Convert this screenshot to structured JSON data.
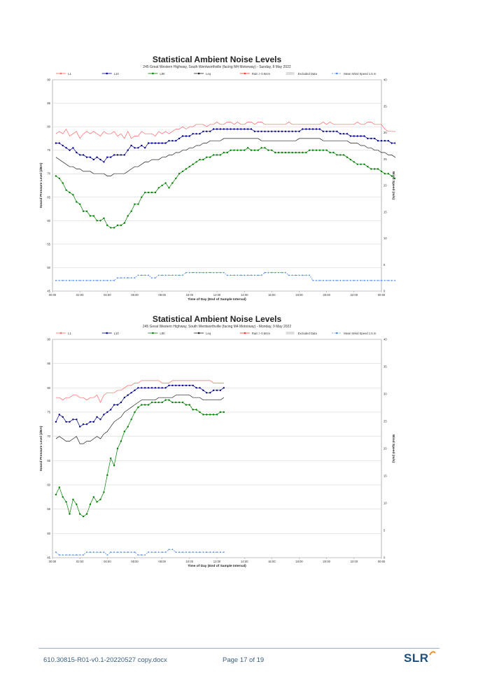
{
  "chart_data": [
    {
      "type": "line",
      "title": "Statistical Ambient Noise Levels",
      "subtitle": "245 Great Western Highway, South Wentworthville (facing M4 Motorway) - Sunday, 8 May 2022",
      "xlabel": "Time of Day (End of Sample Interval)",
      "ylabel": "Sound Pressure Level (dBA)",
      "y2label": "Wind Speed (m/s)",
      "xlim": [
        0,
        24
      ],
      "ylim": [
        45,
        90
      ],
      "y2lim": [
        0,
        40
      ],
      "x_ticks": [
        "00:00",
        "02:00",
        "04:00",
        "06:00",
        "08:00",
        "10:00",
        "12:00",
        "14:00",
        "16:00",
        "18:00",
        "20:00",
        "22:00",
        "00:00"
      ],
      "y_ticks": [
        45,
        50,
        55,
        60,
        65,
        70,
        75,
        80,
        85,
        90
      ],
      "y2_ticks": [
        0,
        5,
        10,
        15,
        20,
        25,
        30,
        35,
        40
      ],
      "grid": true,
      "legend_position": "top",
      "legend": [
        "L1",
        "L10",
        "L90",
        "Leq",
        "Rain > 0.5mm",
        "Excluded Data",
        "Mean Wind Speed 1.5 m"
      ],
      "interval_hours": 0.25,
      "series": [
        {
          "name": "L1",
          "axis": "left",
          "color": "#ff6666",
          "style": "line",
          "values": [
            78.5,
            79,
            78.5,
            79.5,
            78,
            78.5,
            79,
            77.5,
            78.5,
            79,
            78.5,
            79,
            78.5,
            78,
            79,
            78.5,
            78.5,
            79,
            78,
            78.5,
            77.5,
            79,
            77.5,
            78,
            78,
            79,
            78.5,
            78.5,
            78.5,
            78,
            79,
            78.5,
            79,
            78.5,
            79,
            79.5,
            79.5,
            80,
            79.5,
            80,
            80,
            80.5,
            80.5,
            80.5,
            80,
            80.5,
            80.5,
            81,
            80.5,
            80.5,
            81,
            81,
            80.5,
            81,
            80.5,
            80.5,
            81,
            81,
            80.5,
            81,
            81,
            80.5,
            80.5,
            80.5,
            80.5,
            80.5,
            80.5,
            80.5,
            81,
            80.5,
            80.5,
            80.5,
            80.5,
            80.5,
            80.5,
            80.5,
            80.5,
            80.5,
            81,
            80.5,
            81,
            80.5,
            80.5,
            80.5,
            80.5,
            80.5,
            80.5,
            80.5,
            81,
            80.5,
            80.5,
            81,
            81,
            80.5,
            80.5,
            80.5,
            79.5,
            79,
            79,
            79,
            78.5,
            78.5,
            79,
            79,
            78.5,
            78,
            78
          ]
        },
        {
          "name": "L10",
          "axis": "left",
          "color": "#00008b",
          "style": "marker",
          "values": [
            76.5,
            76.5,
            76,
            75.5,
            75,
            75.5,
            74.5,
            74,
            74,
            73.5,
            73.5,
            73,
            73.5,
            73,
            72.5,
            73.5,
            73.5,
            74,
            74,
            74,
            74,
            75,
            76,
            75.5,
            75.5,
            76,
            75.5,
            76.5,
            76.5,
            76.5,
            76.5,
            76.5,
            76.5,
            77,
            77,
            77,
            77.5,
            78,
            78,
            78,
            78.5,
            78.5,
            78.5,
            79,
            79,
            79,
            79.5,
            79.5,
            79.5,
            79.5,
            79.5,
            79.5,
            79.5,
            79.5,
            79.5,
            79.5,
            79.5,
            79.5,
            79,
            79,
            79,
            79,
            79,
            79,
            79,
            79,
            79,
            79,
            79,
            79,
            79,
            79,
            79.5,
            79.5,
            79.5,
            79.5,
            79.5,
            79.5,
            79,
            79,
            79,
            79,
            79,
            78.5,
            78.5,
            78.5,
            78,
            78,
            78,
            78,
            78,
            77.5,
            77.5,
            77.5,
            77,
            77,
            77,
            77,
            76.5,
            76.5,
            76.5,
            76,
            76,
            75.5,
            75,
            74.5,
            73.5
          ]
        },
        {
          "name": "L90",
          "axis": "left",
          "color": "#008000",
          "style": "marker",
          "values": [
            69.5,
            69,
            68,
            66.5,
            66,
            65.5,
            64,
            63.5,
            62,
            62,
            61,
            61,
            60,
            60,
            60.5,
            59,
            58.5,
            58.5,
            59,
            59,
            59.5,
            61,
            62,
            63.5,
            63.5,
            65,
            66,
            66,
            66,
            66,
            67,
            67.5,
            68,
            67,
            68,
            69,
            70,
            70.5,
            71,
            71.5,
            72,
            72.5,
            73,
            73,
            73.5,
            73.5,
            74,
            74,
            74,
            74.5,
            74.5,
            75,
            75,
            75,
            75,
            75,
            75.5,
            75,
            75,
            75,
            75.5,
            75.5,
            75,
            75,
            74.5,
            74.5,
            74.5,
            74.5,
            74.5,
            74.5,
            74.5,
            74.5,
            74.5,
            74.5,
            75,
            75,
            75,
            75,
            75,
            75,
            74.5,
            74.5,
            74,
            74,
            74,
            73.5,
            73,
            72.5,
            72,
            72,
            72,
            71.5,
            71,
            71,
            71,
            70.5,
            70,
            70,
            69.5,
            69,
            68.5,
            67.5,
            66,
            64,
            62,
            60
          ]
        },
        {
          "name": "Leq",
          "axis": "left",
          "color": "#222222",
          "style": "line",
          "values": [
            73.5,
            73,
            72.5,
            72,
            71.5,
            71.5,
            71,
            71,
            70.5,
            70.5,
            70.5,
            70,
            70,
            70,
            70,
            69.5,
            69.5,
            70,
            70,
            70,
            70,
            70.5,
            71,
            71.5,
            71.5,
            72,
            72.5,
            72.5,
            73,
            73,
            73,
            73.5,
            73.5,
            74,
            74,
            74.5,
            74.5,
            75,
            75,
            75.5,
            75.5,
            76,
            76,
            76.5,
            76.5,
            77,
            77,
            77,
            77,
            77.5,
            77.5,
            77.5,
            77.5,
            77.5,
            77.5,
            77.5,
            77.5,
            77.5,
            77.5,
            77.5,
            77,
            77,
            77,
            77,
            77,
            77,
            77,
            77,
            77,
            77,
            77,
            77.5,
            77.5,
            77.5,
            77.5,
            77.5,
            77.5,
            77.5,
            77,
            77,
            77,
            77,
            77,
            77,
            77,
            77,
            76.5,
            76.5,
            76.5,
            76,
            76,
            75.5,
            75.5,
            75,
            75,
            74.5,
            74.5,
            74,
            74,
            73.5,
            73,
            72.5,
            72,
            71.5,
            71,
            70.5,
            70
          ]
        },
        {
          "name": "Mean Wind Speed 1.5 m",
          "axis": "right",
          "color": "#4a86e8",
          "style": "dash-marker",
          "values": [
            2,
            2,
            2,
            2,
            2,
            2,
            2,
            2,
            2,
            2,
            2,
            2,
            2,
            2,
            2,
            2,
            2,
            2,
            2.5,
            2.5,
            2.5,
            2.5,
            2.5,
            2.5,
            3,
            3,
            3,
            3,
            2.5,
            2.5,
            3,
            3,
            3,
            3,
            3,
            3,
            3,
            3,
            3.5,
            3.5,
            3.5,
            3.5,
            3.5,
            3.5,
            3.5,
            3.5,
            3.5,
            3.5,
            3.5,
            3.5,
            3,
            3,
            3,
            3,
            3,
            3,
            3,
            3,
            3,
            3,
            3,
            3.5,
            3.5,
            3.5,
            3.5,
            3.5,
            3.5,
            3.5,
            3,
            3,
            3,
            3,
            3,
            3,
            3,
            2,
            2,
            2,
            2,
            2,
            2,
            2,
            2,
            2,
            2,
            2,
            2,
            2,
            2,
            2,
            2,
            2,
            2,
            2,
            2,
            2,
            2,
            2,
            2,
            2,
            2,
            2,
            2,
            2,
            2,
            2.5,
            2.5
          ]
        }
      ]
    },
    {
      "type": "line",
      "title": "Statistical Ambient Noise Levels",
      "subtitle": "245 Great Western Highway, South Wentworthville (facing M4 Motorway) - Monday, 9 May 2022",
      "xlabel": "Time of Day (End of Sample Interval)",
      "ylabel": "Sound Pressure Level (dBA)",
      "y2label": "Wind Speed (m/s)",
      "xlim": [
        0,
        24
      ],
      "ylim": [
        45,
        90
      ],
      "y2lim": [
        0,
        40
      ],
      "x_ticks": [
        "00:00",
        "02:00",
        "04:00",
        "06:00",
        "08:00",
        "10:00",
        "12:00",
        "14:00",
        "16:00",
        "18:00",
        "20:00",
        "22:00",
        "00:00"
      ],
      "y_ticks": [
        45,
        50,
        55,
        60,
        65,
        70,
        75,
        80,
        85,
        90
      ],
      "y2_ticks": [
        0,
        5,
        10,
        15,
        20,
        25,
        30,
        35,
        40
      ],
      "grid": true,
      "legend_position": "top",
      "legend": [
        "L1",
        "L10",
        "L90",
        "Leq",
        "Rain > 0.5mm",
        "Excluded Data",
        "Mean Wind Speed 1.5 m"
      ],
      "interval_hours": 0.25,
      "series": [
        {
          "name": "L1",
          "axis": "left",
          "color": "#ff6666",
          "style": "line",
          "values": [
            78,
            78,
            77.5,
            78,
            78,
            78.5,
            78.5,
            78,
            78,
            77.5,
            78,
            78,
            78.5,
            77,
            78.5,
            79,
            79,
            79,
            79.5,
            79.5,
            80,
            80.5,
            80.5,
            81,
            81,
            81.5,
            81.5,
            81.5,
            81.5,
            81.5,
            81.5,
            81,
            81,
            81,
            81.5,
            81.5,
            81.5,
            81.5,
            81.5,
            81.5,
            81.5,
            81.5,
            81.5,
            81.5,
            81.5,
            81.5,
            81,
            81,
            81,
            81
          ]
        },
        {
          "name": "L10",
          "axis": "left",
          "color": "#00008b",
          "style": "marker",
          "values": [
            73,
            74.5,
            74,
            73,
            73,
            73.5,
            73.5,
            72,
            72.5,
            72.5,
            73,
            73,
            74,
            73.5,
            74.5,
            75,
            75.5,
            76.5,
            76.5,
            77,
            78,
            78.5,
            79,
            79.5,
            80,
            80,
            80,
            80,
            80,
            80,
            80,
            80,
            80,
            80.5,
            80.5,
            80.5,
            80.5,
            80.5,
            80.5,
            80.5,
            80.5,
            80,
            80,
            79.5,
            79,
            79,
            79.5,
            79.5,
            79.5,
            80
          ]
        },
        {
          "name": "L90",
          "axis": "left",
          "color": "#008000",
          "style": "marker",
          "values": [
            58,
            59.5,
            57.5,
            56.5,
            54,
            57,
            56,
            54,
            53.5,
            54,
            56,
            57.5,
            56.5,
            57,
            58.5,
            62,
            65.5,
            64,
            67.5,
            69,
            71,
            72,
            73.5,
            75,
            76,
            76.5,
            76.5,
            76.5,
            77,
            77,
            77,
            77,
            77.5,
            77.5,
            77,
            77,
            77,
            77,
            76.5,
            76.5,
            75.5,
            75.5,
            75,
            74.5,
            74.5,
            74.5,
            74.5,
            74.5,
            75,
            75
          ]
        },
        {
          "name": "Leq",
          "axis": "left",
          "color": "#222222",
          "style": "line",
          "values": [
            69.5,
            70,
            69.5,
            69,
            69,
            69.5,
            70,
            68.5,
            68.5,
            69,
            69,
            69.5,
            70,
            69.5,
            70.5,
            71,
            72,
            73,
            73.5,
            74,
            75,
            75.5,
            76,
            76.5,
            77,
            77.5,
            77.5,
            77.5,
            77.5,
            77.5,
            78,
            78,
            78,
            78,
            78,
            78.5,
            78.5,
            78.5,
            78.5,
            78.5,
            78,
            78,
            78,
            77.5,
            77.5,
            77.5,
            77.5,
            77.5,
            77.5,
            78
          ]
        },
        {
          "name": "Mean Wind Speed 1.5 m",
          "axis": "right",
          "color": "#4a86e8",
          "style": "dash-marker",
          "values": [
            1,
            0.5,
            0.5,
            0.5,
            0.5,
            0.5,
            0.5,
            0.5,
            0.5,
            1,
            1,
            1,
            1,
            1,
            1,
            0.5,
            1,
            1,
            1,
            1,
            1,
            1,
            1,
            1,
            0.5,
            0.5,
            0.5,
            1,
            1,
            1,
            1,
            1,
            1,
            1.5,
            1.5,
            1,
            1,
            1,
            1,
            1,
            1,
            1,
            1,
            1,
            1,
            1,
            1,
            1,
            1,
            1
          ]
        }
      ]
    }
  ],
  "footer": {
    "doc": "610.30815-R01-v0.1-20220527 copy.docx",
    "page": "Page 17 of 19",
    "logo": "SLR",
    "logo_color": "#1f4e79",
    "logo_accent": "#f28c28"
  }
}
